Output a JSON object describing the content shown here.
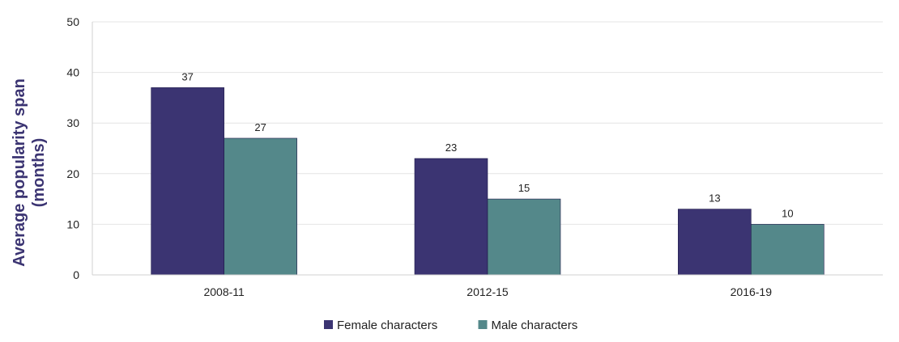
{
  "chart_data": {
    "type": "bar",
    "categories": [
      "2008-11",
      "2012-15",
      "2016-19"
    ],
    "series": [
      {
        "name": "Female characters",
        "values": [
          37,
          23,
          13
        ],
        "color": "#3b3472"
      },
      {
        "name": "Male characters",
        "values": [
          27,
          15,
          10
        ],
        "color": "#54888a"
      }
    ],
    "ylabel_lines": [
      "Average popularity span",
      "(months)"
    ],
    "ylabel_color": "#3b3472",
    "ylim": [
      0,
      50
    ],
    "yticks": [
      0,
      10,
      20,
      30,
      40,
      50
    ],
    "grid": true,
    "legend_position": "bottom-center",
    "data_labels": true
  }
}
